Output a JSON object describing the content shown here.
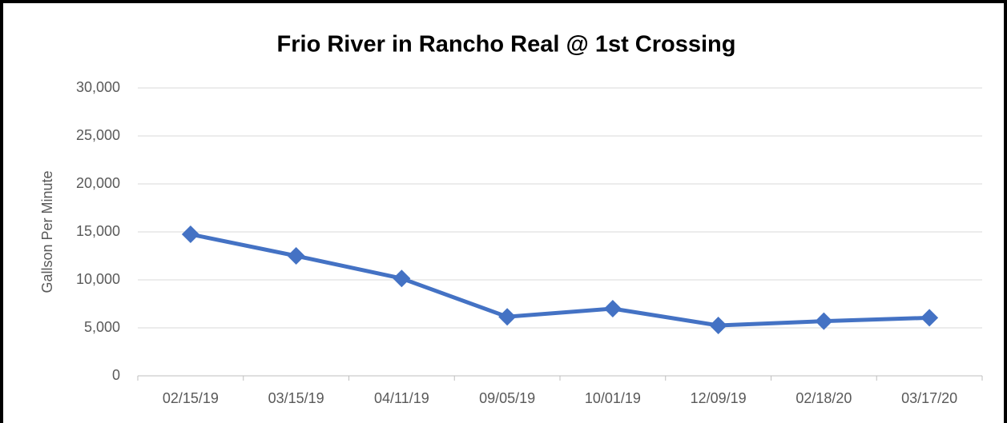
{
  "chart_data": {
    "type": "line",
    "title": "Frio River in Rancho Real @ 1st Crossing",
    "y_label": "Gallson Per Minute",
    "categories": [
      "02/15/19",
      "03/15/19",
      "04/11/19",
      "09/05/19",
      "10/01/19",
      "12/09/19",
      "02/18/20",
      "03/17/20"
    ],
    "series": [
      {
        "name": "Gallson Per Minute",
        "color": "#4472c4",
        "values": [
          14750,
          12500,
          10150,
          6150,
          7000,
          5250,
          5700,
          6050
        ]
      }
    ],
    "ylim": [
      0,
      30000
    ],
    "yticks": [
      0,
      {
        "value": 5000,
        "label": "5,000"
      },
      {
        "value": 10000,
        "label": "10,000"
      },
      {
        "value": 15000,
        "label": "15,000"
      },
      {
        "value": 20000,
        "label": "20,000"
      },
      {
        "value": 25000,
        "label": "25,000"
      },
      {
        "value": 30000,
        "label": "30,000"
      }
    ],
    "grid": true
  }
}
